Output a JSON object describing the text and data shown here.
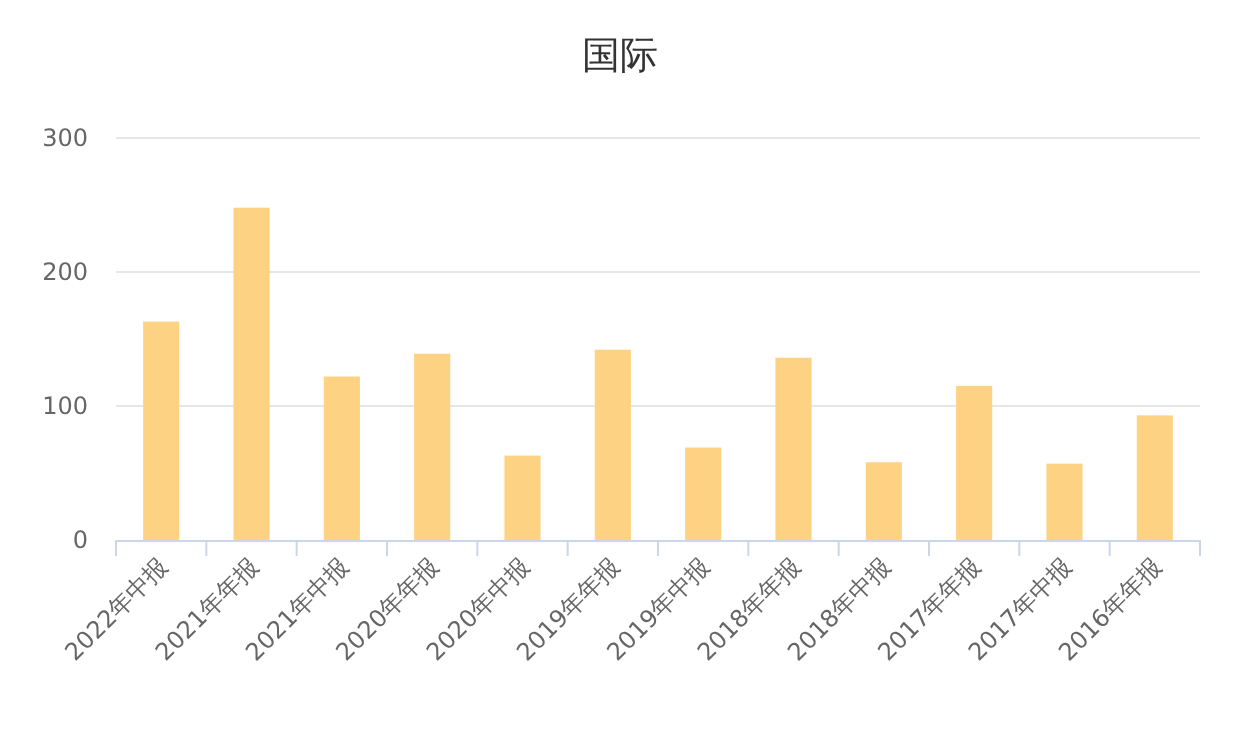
{
  "chart_data": {
    "type": "bar",
    "title": "国际",
    "categories": [
      "2022年中报",
      "2021年年报",
      "2021年中报",
      "2020年年报",
      "2020年中报",
      "2019年年报",
      "2019年中报",
      "2018年年报",
      "2018年中报",
      "2017年年报",
      "2017年中报",
      "2016年年报"
    ],
    "values": [
      163,
      248,
      122,
      139,
      63,
      142,
      69,
      136,
      58,
      115,
      57,
      93
    ],
    "color": "#fdd283",
    "ylim": [
      0,
      300
    ],
    "yticks": [
      0,
      100,
      200,
      300
    ],
    "grid": "y"
  }
}
